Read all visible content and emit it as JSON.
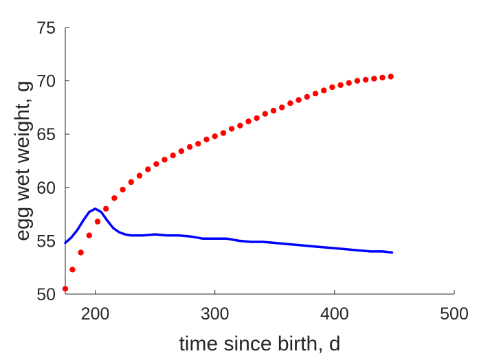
{
  "chart_data": {
    "type": "line",
    "xlabel": "time since birth, d",
    "ylabel": "egg wet weight, g",
    "xlim": [
      175,
      500
    ],
    "ylim": [
      50,
      75
    ],
    "xticks": [
      200,
      300,
      400,
      500
    ],
    "yticks": [
      50,
      55,
      60,
      65,
      70,
      75
    ],
    "grid": false,
    "box": "left-bottom",
    "series": [
      {
        "style": "dots",
        "color": "#ff0000",
        "points": [
          [
            175,
            50.5
          ],
          [
            181,
            52.3
          ],
          [
            188,
            53.9
          ],
          [
            195,
            55.5
          ],
          [
            202,
            56.8
          ],
          [
            209,
            58.0
          ],
          [
            216,
            59.0
          ],
          [
            223,
            59.8
          ],
          [
            230,
            60.5
          ],
          [
            237,
            61.1
          ],
          [
            244,
            61.7
          ],
          [
            251,
            62.2
          ],
          [
            258,
            62.6
          ],
          [
            265,
            63.0
          ],
          [
            272,
            63.4
          ],
          [
            279,
            63.8
          ],
          [
            286,
            64.1
          ],
          [
            293,
            64.5
          ],
          [
            300,
            64.8
          ],
          [
            307,
            65.1
          ],
          [
            314,
            65.5
          ],
          [
            321,
            65.8
          ],
          [
            328,
            66.2
          ],
          [
            335,
            66.5
          ],
          [
            342,
            66.9
          ],
          [
            349,
            67.2
          ],
          [
            356,
            67.5
          ],
          [
            363,
            67.9
          ],
          [
            370,
            68.2
          ],
          [
            377,
            68.5
          ],
          [
            384,
            68.8
          ],
          [
            391,
            69.1
          ],
          [
            398,
            69.4
          ],
          [
            405,
            69.6
          ],
          [
            412,
            69.8
          ],
          [
            419,
            70.0
          ],
          [
            426,
            70.1
          ],
          [
            433,
            70.2
          ],
          [
            440,
            70.3
          ],
          [
            447,
            70.4
          ]
        ]
      },
      {
        "style": "line",
        "color": "#0000ff",
        "points": [
          [
            175,
            54.8
          ],
          [
            180,
            55.3
          ],
          [
            185,
            56.0
          ],
          [
            190,
            56.9
          ],
          [
            195,
            57.7
          ],
          [
            200,
            58.0
          ],
          [
            205,
            57.7
          ],
          [
            210,
            56.9
          ],
          [
            215,
            56.2
          ],
          [
            220,
            55.8
          ],
          [
            225,
            55.6
          ],
          [
            230,
            55.5
          ],
          [
            240,
            55.5
          ],
          [
            250,
            55.6
          ],
          [
            260,
            55.5
          ],
          [
            270,
            55.5
          ],
          [
            280,
            55.4
          ],
          [
            290,
            55.2
          ],
          [
            300,
            55.2
          ],
          [
            310,
            55.2
          ],
          [
            320,
            55.0
          ],
          [
            330,
            54.9
          ],
          [
            340,
            54.9
          ],
          [
            350,
            54.8
          ],
          [
            360,
            54.7
          ],
          [
            370,
            54.6
          ],
          [
            380,
            54.5
          ],
          [
            390,
            54.4
          ],
          [
            400,
            54.3
          ],
          [
            410,
            54.2
          ],
          [
            420,
            54.1
          ],
          [
            430,
            54.0
          ],
          [
            440,
            54.0
          ],
          [
            448,
            53.9
          ]
        ]
      }
    ]
  }
}
